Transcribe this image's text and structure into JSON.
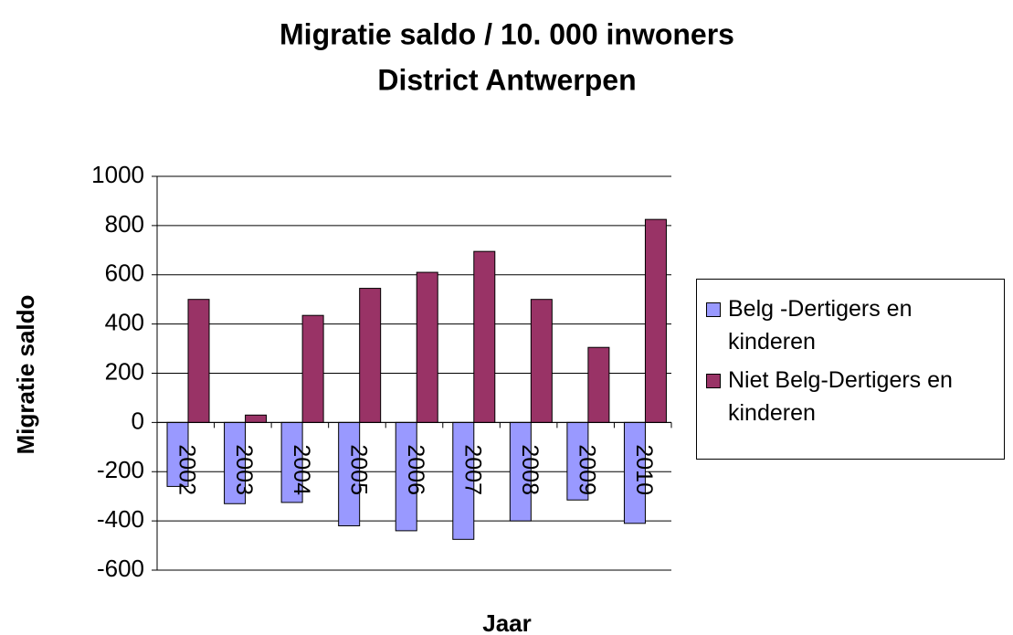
{
  "chart_data": {
    "type": "bar",
    "title": "Migratie saldo / 10. 000 inwoners",
    "subtitle": "District Antwerpen",
    "x_label": "Jaar",
    "y_label": "Migratie saldo",
    "categories": [
      "2002",
      "2003",
      "2004",
      "2005",
      "2006",
      "2007",
      "2008",
      "2009",
      "2010"
    ],
    "series": [
      {
        "name": "Belg -Dertigers en kinderen",
        "color": "#9999ff",
        "values": [
          -260,
          -330,
          -325,
          -420,
          -440,
          -475,
          -400,
          -315,
          -410
        ]
      },
      {
        "name": "Niet Belg-Dertigers en kinderen",
        "color": "#993366",
        "values": [
          500,
          30,
          435,
          545,
          610,
          695,
          500,
          305,
          825
        ]
      }
    ],
    "ylim": [
      -600,
      1000
    ],
    "yticks": [
      -600,
      -400,
      -200,
      0,
      200,
      400,
      600,
      800,
      1000
    ],
    "grid": true,
    "legend": "right"
  }
}
